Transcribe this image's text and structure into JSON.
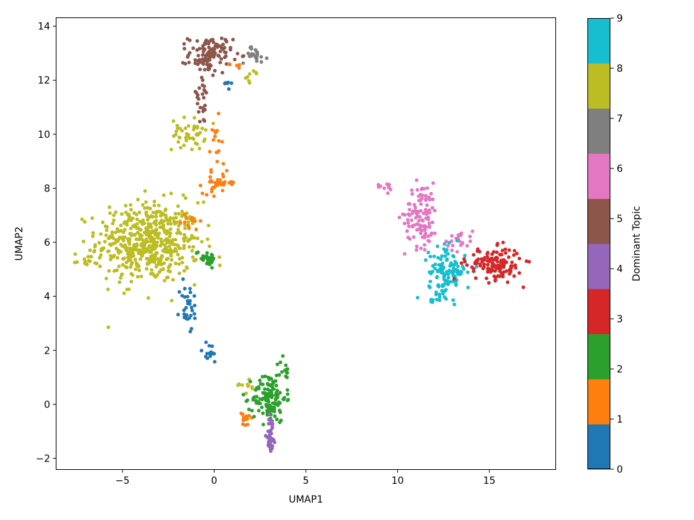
{
  "chart_data": {
    "type": "scatter",
    "xlabel": "UMAP1",
    "ylabel": "UMAP2",
    "xlim": [
      -8.6,
      18.6
    ],
    "ylim": [
      -2.4,
      14.3
    ],
    "xticks": [
      -5,
      0,
      5,
      10,
      15
    ],
    "yticks": [
      -2,
      0,
      2,
      4,
      6,
      8,
      10,
      12,
      14
    ],
    "xtick_labels": [
      "−5",
      "0",
      "5",
      "10",
      "15"
    ],
    "ytick_labels": [
      "−2",
      "0",
      "2",
      "4",
      "6",
      "8",
      "10",
      "12",
      "14"
    ],
    "grid": false,
    "colorbar": {
      "label": "Dominant Topic",
      "range": [
        0,
        9
      ],
      "ticks": [
        0,
        1,
        2,
        3,
        4,
        5,
        6,
        7,
        8,
        9
      ],
      "tick_labels": [
        "0",
        "1",
        "2",
        "3",
        "4",
        "5",
        "6",
        "7",
        "8",
        "9"
      ],
      "colors": [
        "#1f77b4",
        "#ff7f0e",
        "#2ca02c",
        "#d62728",
        "#9467bd",
        "#8c564b",
        "#e377c2",
        "#7f7f7f",
        "#bcbd22",
        "#17becf"
      ]
    },
    "clusters": [
      {
        "topic": 8,
        "cx": -3.6,
        "cy": 6.0,
        "sx": 1.4,
        "sy": 0.75,
        "n": 520
      },
      {
        "topic": 8,
        "cx": -7.0,
        "cy": 5.35,
        "sx": 0.35,
        "sy": 0.12,
        "n": 12
      },
      {
        "topic": 8,
        "cx": -1.4,
        "cy": 10.0,
        "sx": 0.45,
        "sy": 0.3,
        "n": 45
      },
      {
        "topic": 8,
        "cx": 2.1,
        "cy": 12.1,
        "sx": 0.25,
        "sy": 0.12,
        "n": 8
      },
      {
        "topic": 8,
        "cx": 1.7,
        "cy": 0.7,
        "sx": 0.25,
        "sy": 0.15,
        "n": 10
      },
      {
        "topic": 5,
        "cx": -0.2,
        "cy": 12.95,
        "sx": 0.6,
        "sy": 0.35,
        "n": 110
      },
      {
        "topic": 5,
        "cx": -0.7,
        "cy": 11.3,
        "sx": 0.25,
        "sy": 0.5,
        "n": 25
      },
      {
        "topic": 7,
        "cx": 2.2,
        "cy": 12.95,
        "sx": 0.35,
        "sy": 0.15,
        "n": 22
      },
      {
        "topic": 1,
        "cx": 0.3,
        "cy": 8.2,
        "sx": 0.45,
        "sy": 0.2,
        "n": 35
      },
      {
        "topic": 1,
        "cx": 0.05,
        "cy": 9.3,
        "sx": 0.2,
        "sy": 0.6,
        "n": 15
      },
      {
        "topic": 1,
        "cx": -1.3,
        "cy": 6.8,
        "sx": 0.25,
        "sy": 0.2,
        "n": 12
      },
      {
        "topic": 1,
        "cx": 1.7,
        "cy": -0.6,
        "sx": 0.2,
        "sy": 0.15,
        "n": 12
      },
      {
        "topic": 1,
        "cx": 1.2,
        "cy": 12.5,
        "sx": 0.15,
        "sy": 0.1,
        "n": 4
      },
      {
        "topic": 2,
        "cx": -0.4,
        "cy": 5.45,
        "sx": 0.3,
        "sy": 0.15,
        "n": 28
      },
      {
        "topic": 2,
        "cx": 3.0,
        "cy": 0.25,
        "sx": 0.45,
        "sy": 0.45,
        "n": 130
      },
      {
        "topic": 2,
        "cx": 3.8,
        "cy": 1.2,
        "sx": 0.15,
        "sy": 0.25,
        "n": 12
      },
      {
        "topic": 0,
        "cx": -1.4,
        "cy": 3.6,
        "sx": 0.25,
        "sy": 0.5,
        "n": 30
      },
      {
        "topic": 0,
        "cx": -0.3,
        "cy": 1.9,
        "sx": 0.3,
        "sy": 0.2,
        "n": 15
      },
      {
        "topic": 0,
        "cx": 0.8,
        "cy": 11.8,
        "sx": 0.15,
        "sy": 0.1,
        "n": 5
      },
      {
        "topic": 4,
        "cx": 3.1,
        "cy": -1.1,
        "sx": 0.12,
        "sy": 0.35,
        "n": 35
      },
      {
        "topic": 6,
        "cx": 11.3,
        "cy": 7.0,
        "sx": 0.45,
        "sy": 0.6,
        "n": 110
      },
      {
        "topic": 6,
        "cx": 9.4,
        "cy": 8.05,
        "sx": 0.25,
        "sy": 0.1,
        "n": 10
      },
      {
        "topic": 6,
        "cx": 13.3,
        "cy": 6.1,
        "sx": 0.4,
        "sy": 0.2,
        "n": 25
      },
      {
        "topic": 9,
        "cx": 12.7,
        "cy": 4.9,
        "sx": 0.5,
        "sy": 0.45,
        "n": 130
      },
      {
        "topic": 9,
        "cx": 11.9,
        "cy": 3.9,
        "sx": 0.12,
        "sy": 0.12,
        "n": 6
      },
      {
        "topic": 3,
        "cx": 15.3,
        "cy": 5.2,
        "sx": 0.75,
        "sy": 0.3,
        "n": 140
      }
    ]
  }
}
